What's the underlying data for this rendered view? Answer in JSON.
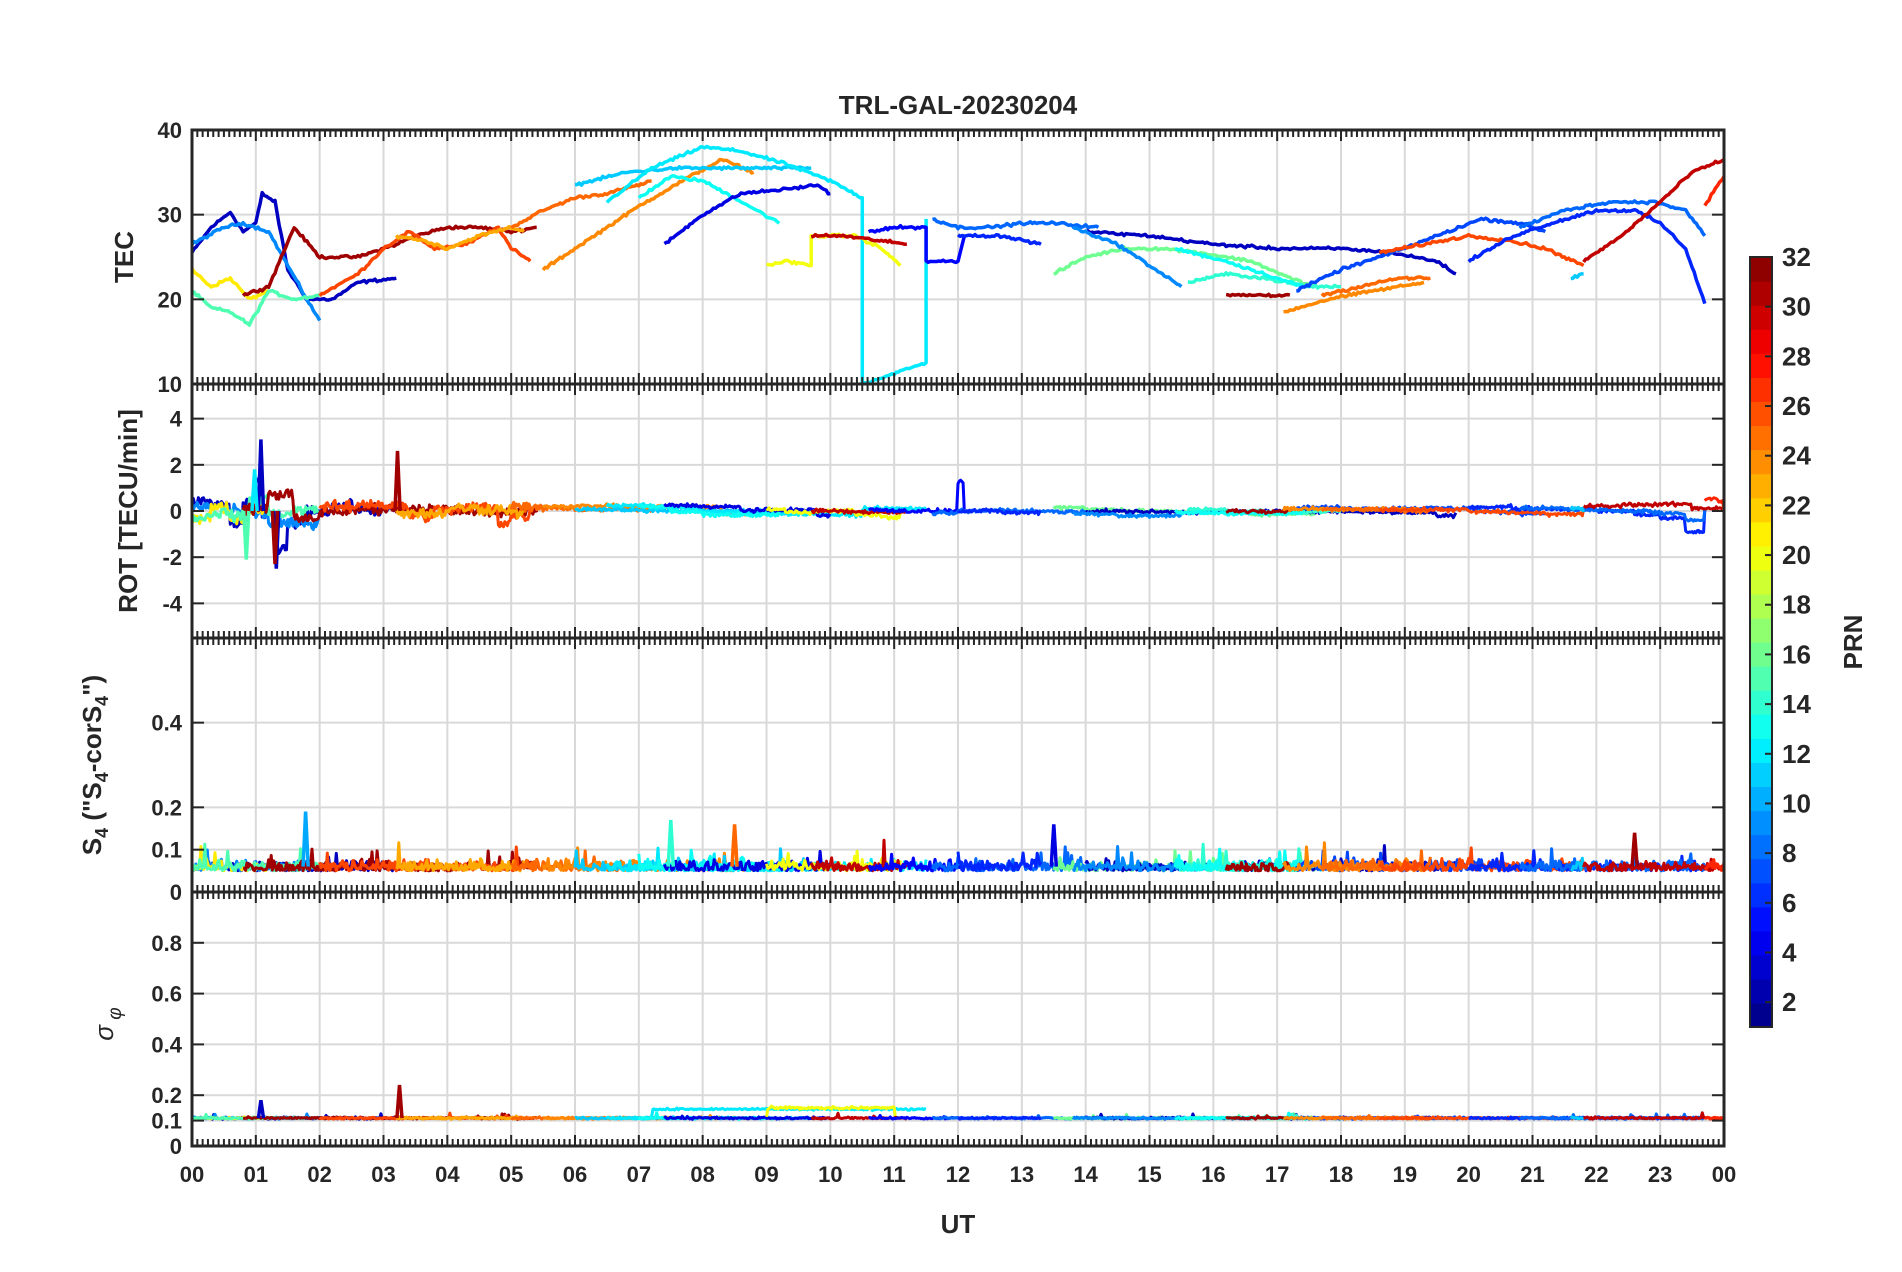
{
  "chart_data": {
    "type": "line",
    "title": "TRL-GAL-20230204",
    "xlabel": "UT",
    "x_tick_labels": [
      "00",
      "01",
      "02",
      "03",
      "04",
      "05",
      "06",
      "07",
      "08",
      "09",
      "10",
      "11",
      "12",
      "13",
      "14",
      "15",
      "16",
      "17",
      "18",
      "19",
      "20",
      "21",
      "22",
      "23",
      "00"
    ],
    "xlim": [
      0,
      24
    ],
    "grid": true,
    "colormap": "jet",
    "colorbar": {
      "label": "PRN",
      "range": [
        1,
        32
      ],
      "tick_labels": [
        "2",
        "4",
        "6",
        "8",
        "10",
        "12",
        "14",
        "16",
        "18",
        "20",
        "22",
        "24",
        "26",
        "28",
        "30",
        "32"
      ],
      "placement": "right"
    },
    "panels": [
      {
        "id": "tec",
        "ylabel": "TEC",
        "ylim": [
          10,
          40
        ],
        "y_ticks": [
          10,
          20,
          30,
          40
        ],
        "series": [
          {
            "prn": 3,
            "x": [
              0.0,
              0.3,
              0.6,
              0.8,
              1.0,
              1.1,
              1.3,
              1.5,
              1.8,
              2.2,
              2.6,
              3.2
            ],
            "y": [
              25.5,
              28.5,
              30.3,
              28.0,
              29.0,
              32.5,
              31.5,
              23.5,
              20.0,
              20.0,
              22.0,
              22.5
            ]
          },
          {
            "prn": 9,
            "x": [
              0.0,
              0.5,
              0.8,
              1.2,
              1.5,
              1.8,
              2.0
            ],
            "y": [
              26.5,
              28.5,
              29.0,
              28.0,
              24.0,
              20.0,
              17.5
            ]
          },
          {
            "prn": 21,
            "x": [
              0.0,
              0.3,
              0.6,
              0.9,
              1.2
            ],
            "y": [
              23.5,
              21.5,
              22.5,
              20.0,
              21.0
            ]
          },
          {
            "prn": 15,
            "x": [
              0.0,
              0.3,
              0.6,
              0.9,
              1.2,
              1.6,
              2.0
            ],
            "y": [
              21.0,
              19.0,
              18.5,
              17.0,
              21.0,
              20.0,
              20.5
            ]
          },
          {
            "prn": 31,
            "x": [
              0.8,
              1.2,
              1.6,
              2.0,
              2.6,
              3.2,
              3.5,
              4.0,
              4.5,
              5.0,
              5.4
            ],
            "y": [
              20.5,
              21.5,
              28.5,
              25.0,
              25.0,
              26.5,
              27.5,
              28.5,
              28.5,
              28.0,
              28.5
            ]
          },
          {
            "prn": 26,
            "x": [
              2.0,
              2.6,
              3.0,
              3.4,
              3.8,
              4.3,
              4.8,
              5.0,
              5.3
            ],
            "y": [
              20.5,
              23.0,
              26.0,
              28.0,
              26.0,
              26.5,
              28.5,
              26.0,
              24.5
            ]
          },
          {
            "prn": 23,
            "x": [
              3.2,
              3.6,
              4.0,
              4.5,
              5.0,
              5.2
            ],
            "y": [
              27.5,
              27.0,
              26.0,
              27.5,
              28.5,
              28.0
            ]
          },
          {
            "prn": 25,
            "x": [
              5.0,
              5.5,
              6.0,
              6.5,
              7.0,
              7.2
            ],
            "y": [
              28.5,
              30.5,
              32.0,
              32.5,
              33.5,
              34.0
            ]
          },
          {
            "prn": 24,
            "x": [
              5.5,
              6.2,
              7.0,
              7.8,
              8.3,
              8.8
            ],
            "y": [
              23.5,
              27.0,
              31.0,
              34.5,
              36.5,
              35.0
            ]
          },
          {
            "prn": 11,
            "x": [
              6.0,
              6.8,
              7.6,
              8.2,
              9.0,
              9.7
            ],
            "y": [
              33.5,
              35.0,
              35.5,
              35.5,
              35.5,
              35.5
            ]
          },
          {
            "prn": 12,
            "x": [
              6.5,
              7.2,
              8.0,
              8.6,
              9.3,
              10.0,
              10.5,
              10.5,
              11.5,
              11.5
            ],
            "y": [
              31.5,
              35.5,
              38.0,
              37.5,
              36.0,
              34.0,
              32.0,
              10.0,
              12.5,
              29.5
            ]
          },
          {
            "prn": 13,
            "x": [
              7.0,
              7.5,
              8.0,
              8.5,
              9.2
            ],
            "y": [
              32.0,
              34.5,
              34.0,
              32.0,
              29.0
            ]
          },
          {
            "prn": 4,
            "x": [
              7.4,
              8.0,
              8.6,
              9.3,
              9.8,
              10.0
            ],
            "y": [
              26.5,
              30.0,
              32.5,
              33.0,
              33.5,
              32.5
            ]
          },
          {
            "prn": 20,
            "x": [
              9.0,
              9.3,
              9.7,
              9.7,
              10.4,
              10.8,
              11.1
            ],
            "y": [
              24.0,
              24.5,
              24.0,
              27.5,
              27.5,
              26.0,
              24.0
            ]
          },
          {
            "prn": 30,
            "x": [
              9.7,
              10.2,
              10.7,
              11.2
            ],
            "y": [
              27.5,
              27.5,
              27.0,
              26.5
            ]
          },
          {
            "prn": 5,
            "x": [
              10.6,
              11.0,
              11.5,
              11.5,
              12.0,
              12.1
            ],
            "y": [
              28.0,
              28.5,
              28.5,
              24.5,
              24.5,
              27.5
            ]
          },
          {
            "prn": 8,
            "x": [
              11.6,
              12.0,
              12.5,
              13.0,
              13.5,
              14.2
            ],
            "y": [
              29.5,
              28.5,
              28.5,
              29.0,
              29.0,
              28.5
            ]
          },
          {
            "prn": 6,
            "x": [
              12.0,
              12.7,
              13.3
            ],
            "y": [
              27.5,
              27.5,
              26.5
            ]
          },
          {
            "prn": 16,
            "x": [
              13.5,
              14.0,
              14.6,
              15.2,
              15.8,
              16.6,
              17.2,
              17.6
            ],
            "y": [
              23.0,
              25.0,
              26.0,
              26.0,
              25.5,
              24.5,
              22.5,
              21.5
            ]
          },
          {
            "prn": 3,
            "x": [
              14.0,
              15.0,
              16.0,
              17.0,
              18.0,
              18.8,
              19.5,
              19.8
            ],
            "y": [
              28.0,
              27.5,
              26.5,
              26.0,
              26.0,
              25.5,
              24.5,
              23.0
            ]
          },
          {
            "prn": 9,
            "x": [
              13.8,
              14.5,
              15.0,
              15.5
            ],
            "y": [
              28.5,
              26.5,
              24.0,
              21.5
            ]
          },
          {
            "prn": 14,
            "x": [
              15.6,
              16.2,
              16.8,
              17.5,
              18.0
            ],
            "y": [
              22.0,
              23.0,
              22.5,
              21.5,
              21.5
            ]
          },
          {
            "prn": 13,
            "x": [
              15.4,
              16.2,
              17.0,
              17.4
            ],
            "y": [
              26.0,
              24.5,
              22.5,
              21.5
            ]
          },
          {
            "prn": 31,
            "x": [
              16.2,
              16.6,
              17.2
            ],
            "y": [
              20.5,
              20.5,
              20.5
            ]
          },
          {
            "prn": 7,
            "x": [
              17.3,
              18.0,
              18.8,
              19.5,
              20.2,
              20.8,
              21.2
            ],
            "y": [
              21.0,
              23.5,
              25.5,
              27.5,
              29.5,
              29.0,
              28.0
            ]
          },
          {
            "prn": 24,
            "x": [
              17.1,
              17.8,
              18.5,
              19.3
            ],
            "y": [
              18.5,
              20.0,
              21.0,
              22.0
            ]
          },
          {
            "prn": 25,
            "x": [
              17.7,
              18.3,
              18.9,
              19.4
            ],
            "y": [
              20.5,
              21.5,
              22.5,
              22.5
            ]
          },
          {
            "prn": 26,
            "x": [
              18.6,
              19.3,
              20.0,
              20.6,
              21.2,
              21.8
            ],
            "y": [
              25.5,
              26.5,
              27.5,
              27.0,
              26.0,
              24.0
            ]
          },
          {
            "prn": 6,
            "x": [
              20.0,
              20.7,
              21.3,
              22.0,
              22.6,
              23.0,
              23.4,
              23.7
            ],
            "y": [
              24.5,
              27.5,
              29.0,
              30.5,
              30.5,
              29.0,
              26.0,
              19.5
            ]
          },
          {
            "prn": 8,
            "x": [
              20.8,
              21.5,
              22.2,
              22.9,
              23.4,
              23.7
            ],
            "y": [
              28.5,
              30.5,
              31.5,
              31.5,
              30.5,
              27.5
            ]
          },
          {
            "prn": 11,
            "x": [
              21.6,
              21.8
            ],
            "y": [
              22.5,
              23.0
            ]
          },
          {
            "prn": 30,
            "x": [
              21.8,
              22.4,
              23.0,
              23.5,
              24.0
            ],
            "y": [
              24.5,
              27.5,
              31.5,
              35.0,
              36.5
            ]
          },
          {
            "prn": 27,
            "x": [
              23.7,
              23.9,
              24.0
            ],
            "y": [
              31.0,
              33.5,
              34.5
            ]
          }
        ]
      },
      {
        "id": "rot",
        "ylabel": "ROT [TECU/min]",
        "ylim": [
          -5.5,
          5.5
        ],
        "y_tick_labels": [
          "-4",
          "-2",
          "0",
          "2",
          "4"
        ],
        "y_ticks": [
          -4,
          -2,
          0,
          2,
          4
        ],
        "peaks": [
          {
            "prn": 3,
            "x": 1.08,
            "y": 3.1
          },
          {
            "prn": 3,
            "x": 1.32,
            "y": -2.5
          },
          {
            "prn": 12,
            "x": 0.98,
            "y": 1.8
          },
          {
            "prn": 15,
            "x": 0.85,
            "y": -2.1
          },
          {
            "prn": 31,
            "x": 3.22,
            "y": 2.6
          },
          {
            "prn": 31,
            "x": 1.3,
            "y": -2.3
          }
        ]
      },
      {
        "id": "s4",
        "ylabel": "S4 (\"S4-corS4\")",
        "ylim": [
          0,
          0.6
        ],
        "y_tick_labels": [
          "0",
          "0.1",
          "0.2",
          "0.4"
        ],
        "y_ticks": [
          0,
          0.1,
          0.2,
          0.4
        ],
        "peaks": [
          {
            "prn": 10,
            "x": 1.78,
            "y": 0.19
          },
          {
            "prn": 14,
            "x": 7.5,
            "y": 0.17
          },
          {
            "prn": 25,
            "x": 8.5,
            "y": 0.16
          },
          {
            "prn": 4,
            "x": 13.5,
            "y": 0.16
          },
          {
            "prn": 31,
            "x": 22.6,
            "y": 0.14
          }
        ]
      },
      {
        "id": "sigma_phi",
        "ylabel": "σ φ",
        "ylim": [
          0,
          1
        ],
        "y_tick_labels": [
          "0",
          "0.1",
          "0.2",
          "0.4",
          "0.6",
          "0.8"
        ],
        "y_ticks": [
          0,
          0.1,
          0.2,
          0.4,
          0.6,
          0.8
        ],
        "baseline": 0.11,
        "peaks": [
          {
            "prn": 31,
            "x": 3.25,
            "y": 0.24
          },
          {
            "prn": 3,
            "x": 1.08,
            "y": 0.18
          }
        ]
      }
    ]
  }
}
